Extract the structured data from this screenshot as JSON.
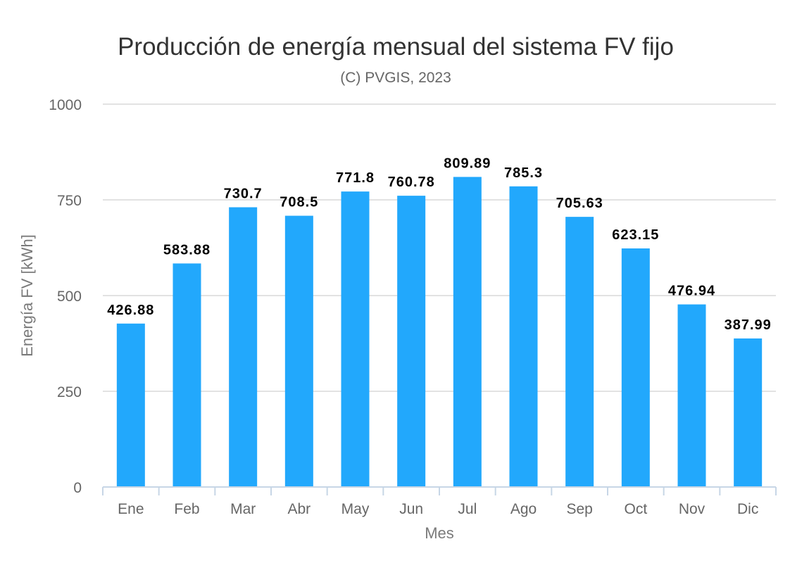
{
  "chart_data": {
    "type": "bar",
    "title": "Producción de energía mensual del sistema FV fijo",
    "subtitle": "(C) PVGIS, 2023",
    "xlabel": "Mes",
    "ylabel": "Energía FV [kWh]",
    "categories": [
      "Ene",
      "Feb",
      "Mar",
      "Abr",
      "May",
      "Jun",
      "Jul",
      "Ago",
      "Sep",
      "Oct",
      "Nov",
      "Dic"
    ],
    "values": [
      426.88,
      583.88,
      730.7,
      708.5,
      771.8,
      760.78,
      809.89,
      785.3,
      705.63,
      623.15,
      476.94,
      387.99
    ],
    "data_labels": [
      "426.88",
      "583.88",
      "730.7",
      "708.5",
      "771.8",
      "760.78",
      "809.89",
      "785.3",
      "705.63",
      "623.15",
      "476.94",
      "387.99"
    ],
    "ylim": [
      0,
      1000
    ],
    "yticks": [
      0,
      250,
      500,
      750,
      1000
    ],
    "grid": true,
    "legend": "none",
    "bar_color": "#22a8fc"
  }
}
